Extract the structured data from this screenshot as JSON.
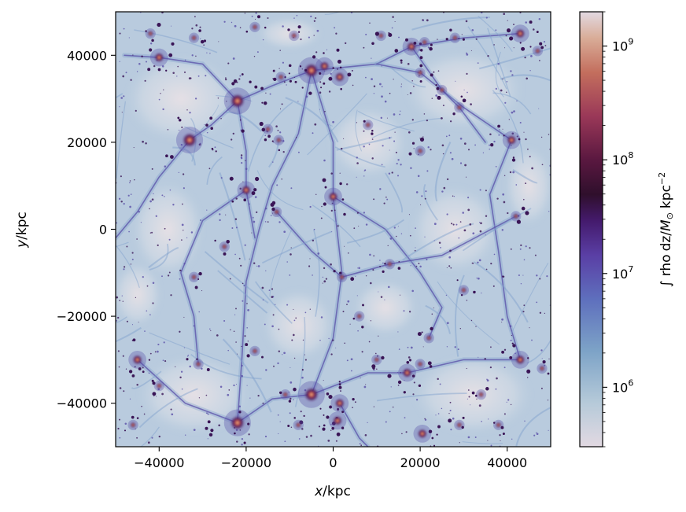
{
  "chart_data": {
    "type": "heatmap",
    "title": "",
    "xlabel": {
      "var": "x",
      "unit": "/kpc"
    },
    "ylabel": {
      "var": "y",
      "unit": "/kpc"
    },
    "xlim": [
      -50000,
      50000
    ],
    "ylim": [
      -50000,
      50000
    ],
    "x_ticks": [
      -40000,
      -20000,
      0,
      20000,
      40000
    ],
    "x_tick_labels": [
      "−40000",
      "−20000",
      "0",
      "20000",
      "40000"
    ],
    "y_ticks": [
      -40000,
      -20000,
      0,
      20000,
      40000
    ],
    "y_tick_labels": [
      "−40000",
      "−20000",
      "0",
      "20000",
      "40000"
    ],
    "grid": false,
    "colormap": "twilight (light blue to purple to orange to pale)",
    "colorbar": {
      "scale": "log",
      "range": [
        300000,
        2000000000
      ],
      "major_ticks": [
        1000000,
        10000000,
        100000000,
        1000000000
      ],
      "major_tick_labels": [
        {
          "base": "10",
          "exp": "6"
        },
        {
          "base": "10",
          "exp": "7"
        },
        {
          "base": "10",
          "exp": "8"
        },
        {
          "base": "10",
          "exp": "9"
        }
      ],
      "label": "∫ rho dz/M⊙ kpc⁻²",
      "label_parts": {
        "integral": "∫",
        "rho": "rho",
        "dz": "dz",
        "mass": "M",
        "sun": "⊙",
        "unit": "kpc",
        "exp": "−2"
      }
    },
    "colors": {
      "void": "#e3dde3",
      "low": "#b7cadd",
      "filament": "#7f9fcb",
      "mid": "#5a4fa8",
      "high": "#3a1556",
      "peak": "#2a0f28",
      "halo_hot": "#b8504f",
      "halo_warm": "#d79a76"
    },
    "halos": [
      {
        "x": -5000,
        "y": 36500,
        "m": 3
      },
      {
        "x": -2000,
        "y": 37500,
        "m": 2
      },
      {
        "x": 1500,
        "y": 35000,
        "m": 2
      },
      {
        "x": -22000,
        "y": 29500,
        "m": 3
      },
      {
        "x": -33000,
        "y": 20500,
        "m": 3
      },
      {
        "x": 41000,
        "y": 20500,
        "m": 2
      },
      {
        "x": -40000,
        "y": 39500,
        "m": 2
      },
      {
        "x": -42000,
        "y": 45000,
        "m": 1
      },
      {
        "x": -32000,
        "y": 44000,
        "m": 1
      },
      {
        "x": -18000,
        "y": 46500,
        "m": 1
      },
      {
        "x": -9000,
        "y": 44500,
        "m": 1
      },
      {
        "x": 11000,
        "y": 44500,
        "m": 1
      },
      {
        "x": 18000,
        "y": 42000,
        "m": 2
      },
      {
        "x": 21000,
        "y": 43000,
        "m": 1
      },
      {
        "x": 28000,
        "y": 44000,
        "m": 1
      },
      {
        "x": 43000,
        "y": 45000,
        "m": 2
      },
      {
        "x": 47000,
        "y": 41000,
        "m": 1
      },
      {
        "x": -12000,
        "y": 35000,
        "m": 1
      },
      {
        "x": 20000,
        "y": 36000,
        "m": 1
      },
      {
        "x": 25000,
        "y": 32000,
        "m": 1
      },
      {
        "x": 29000,
        "y": 28000,
        "m": 1
      },
      {
        "x": -15000,
        "y": 23000,
        "m": 1
      },
      {
        "x": -12500,
        "y": 20500,
        "m": 1
      },
      {
        "x": 8000,
        "y": 24000,
        "m": 1
      },
      {
        "x": 20000,
        "y": 18000,
        "m": 1
      },
      {
        "x": -20000,
        "y": 9000,
        "m": 2
      },
      {
        "x": 0,
        "y": 7500,
        "m": 2
      },
      {
        "x": -13000,
        "y": 4000,
        "m": 1
      },
      {
        "x": -25000,
        "y": -4000,
        "m": 1
      },
      {
        "x": 13000,
        "y": -8000,
        "m": 1
      },
      {
        "x": 42000,
        "y": 3000,
        "m": 1
      },
      {
        "x": -32000,
        "y": -11000,
        "m": 1
      },
      {
        "x": 30000,
        "y": -14000,
        "m": 1
      },
      {
        "x": 2000,
        "y": -11000,
        "m": 1
      },
      {
        "x": -5000,
        "y": -38000,
        "m": 3
      },
      {
        "x": 1500,
        "y": -40000,
        "m": 2
      },
      {
        "x": 1000,
        "y": -44000,
        "m": 2
      },
      {
        "x": -11000,
        "y": -38000,
        "m": 1
      },
      {
        "x": 10000,
        "y": -30000,
        "m": 1
      },
      {
        "x": 17000,
        "y": -33000,
        "m": 2
      },
      {
        "x": 20000,
        "y": -31000,
        "m": 1
      },
      {
        "x": 20500,
        "y": -47000,
        "m": 2
      },
      {
        "x": -22000,
        "y": -44500,
        "m": 3
      },
      {
        "x": -31000,
        "y": -31000,
        "m": 1
      },
      {
        "x": -40000,
        "y": -36000,
        "m": 1
      },
      {
        "x": -45000,
        "y": -30000,
        "m": 2
      },
      {
        "x": 43000,
        "y": -30000,
        "m": 2
      },
      {
        "x": 48000,
        "y": -32000,
        "m": 1
      },
      {
        "x": 34000,
        "y": -38000,
        "m": 1
      },
      {
        "x": 22000,
        "y": -25000,
        "m": 1
      },
      {
        "x": -18000,
        "y": -28000,
        "m": 1
      },
      {
        "x": 6000,
        "y": -20000,
        "m": 1
      },
      {
        "x": 29000,
        "y": -45000,
        "m": 1
      },
      {
        "x": -8000,
        "y": -45000,
        "m": 1
      },
      {
        "x": 38000,
        "y": -45000,
        "m": 1
      },
      {
        "x": -46000,
        "y": -45000,
        "m": 1
      }
    ],
    "filaments": [
      [
        [
          -5000,
          36500
        ],
        [
          -8000,
          22000
        ],
        [
          -14000,
          10000
        ],
        [
          -17000,
          0
        ],
        [
          -20000,
          -12000
        ],
        [
          -21000,
          -30000
        ],
        [
          -22000,
          -44500
        ]
      ],
      [
        [
          -5000,
          36500
        ],
        [
          0,
          20000
        ],
        [
          0,
          7500
        ],
        [
          2000,
          -10000
        ],
        [
          0,
          -25000
        ],
        [
          -5000,
          -38000
        ]
      ],
      [
        [
          -5000,
          36500
        ],
        [
          -14000,
          33000
        ],
        [
          -22000,
          29500
        ],
        [
          -28000,
          24000
        ],
        [
          -33000,
          20500
        ]
      ],
      [
        [
          -5000,
          36500
        ],
        [
          10000,
          38000
        ],
        [
          18000,
          42000
        ],
        [
          30000,
          44000
        ],
        [
          43000,
          45000
        ]
      ],
      [
        [
          -22000,
          29500
        ],
        [
          -20000,
          18000
        ],
        [
          -20000,
          9000
        ],
        [
          -18000,
          -2000
        ]
      ],
      [
        [
          -33000,
          20500
        ],
        [
          -40000,
          12000
        ],
        [
          -45000,
          4000
        ],
        [
          -50000,
          -2000
        ]
      ],
      [
        [
          -5000,
          -38000
        ],
        [
          -14000,
          -39000
        ],
        [
          -22000,
          -44500
        ],
        [
          -34000,
          -40000
        ],
        [
          -45000,
          -30000
        ]
      ],
      [
        [
          -5000,
          -38000
        ],
        [
          8000,
          -33000
        ],
        [
          17000,
          -33000
        ],
        [
          30000,
          -30000
        ],
        [
          43000,
          -30000
        ]
      ],
      [
        [
          41000,
          20500
        ],
        [
          30000,
          28000
        ],
        [
          20000,
          36000
        ],
        [
          10000,
          38000
        ]
      ],
      [
        [
          41000,
          20500
        ],
        [
          36000,
          8000
        ],
        [
          38000,
          -5000
        ],
        [
          40000,
          -20000
        ],
        [
          43000,
          -30000
        ]
      ],
      [
        [
          0,
          7500
        ],
        [
          12000,
          0
        ],
        [
          20000,
          -10000
        ],
        [
          25000,
          -18000
        ],
        [
          22000,
          -25000
        ]
      ],
      [
        [
          -20000,
          9000
        ],
        [
          -30000,
          2000
        ],
        [
          -35000,
          -10000
        ],
        [
          -32000,
          -20000
        ],
        [
          -31000,
          -31000
        ]
      ],
      [
        [
          1500,
          -40000
        ],
        [
          6000,
          -48000
        ],
        [
          8000,
          -50000
        ]
      ],
      [
        [
          -22000,
          29500
        ],
        [
          -30000,
          38000
        ],
        [
          -40000,
          39500
        ],
        [
          -48000,
          40000
        ]
      ],
      [
        [
          18000,
          42000
        ],
        [
          25000,
          32000
        ],
        [
          29000,
          28000
        ],
        [
          35000,
          20000
        ]
      ],
      [
        [
          -13000,
          4000
        ],
        [
          -5000,
          -5000
        ],
        [
          2000,
          -11000
        ],
        [
          13000,
          -8000
        ],
        [
          25000,
          -6000
        ],
        [
          42000,
          3000
        ]
      ]
    ]
  }
}
